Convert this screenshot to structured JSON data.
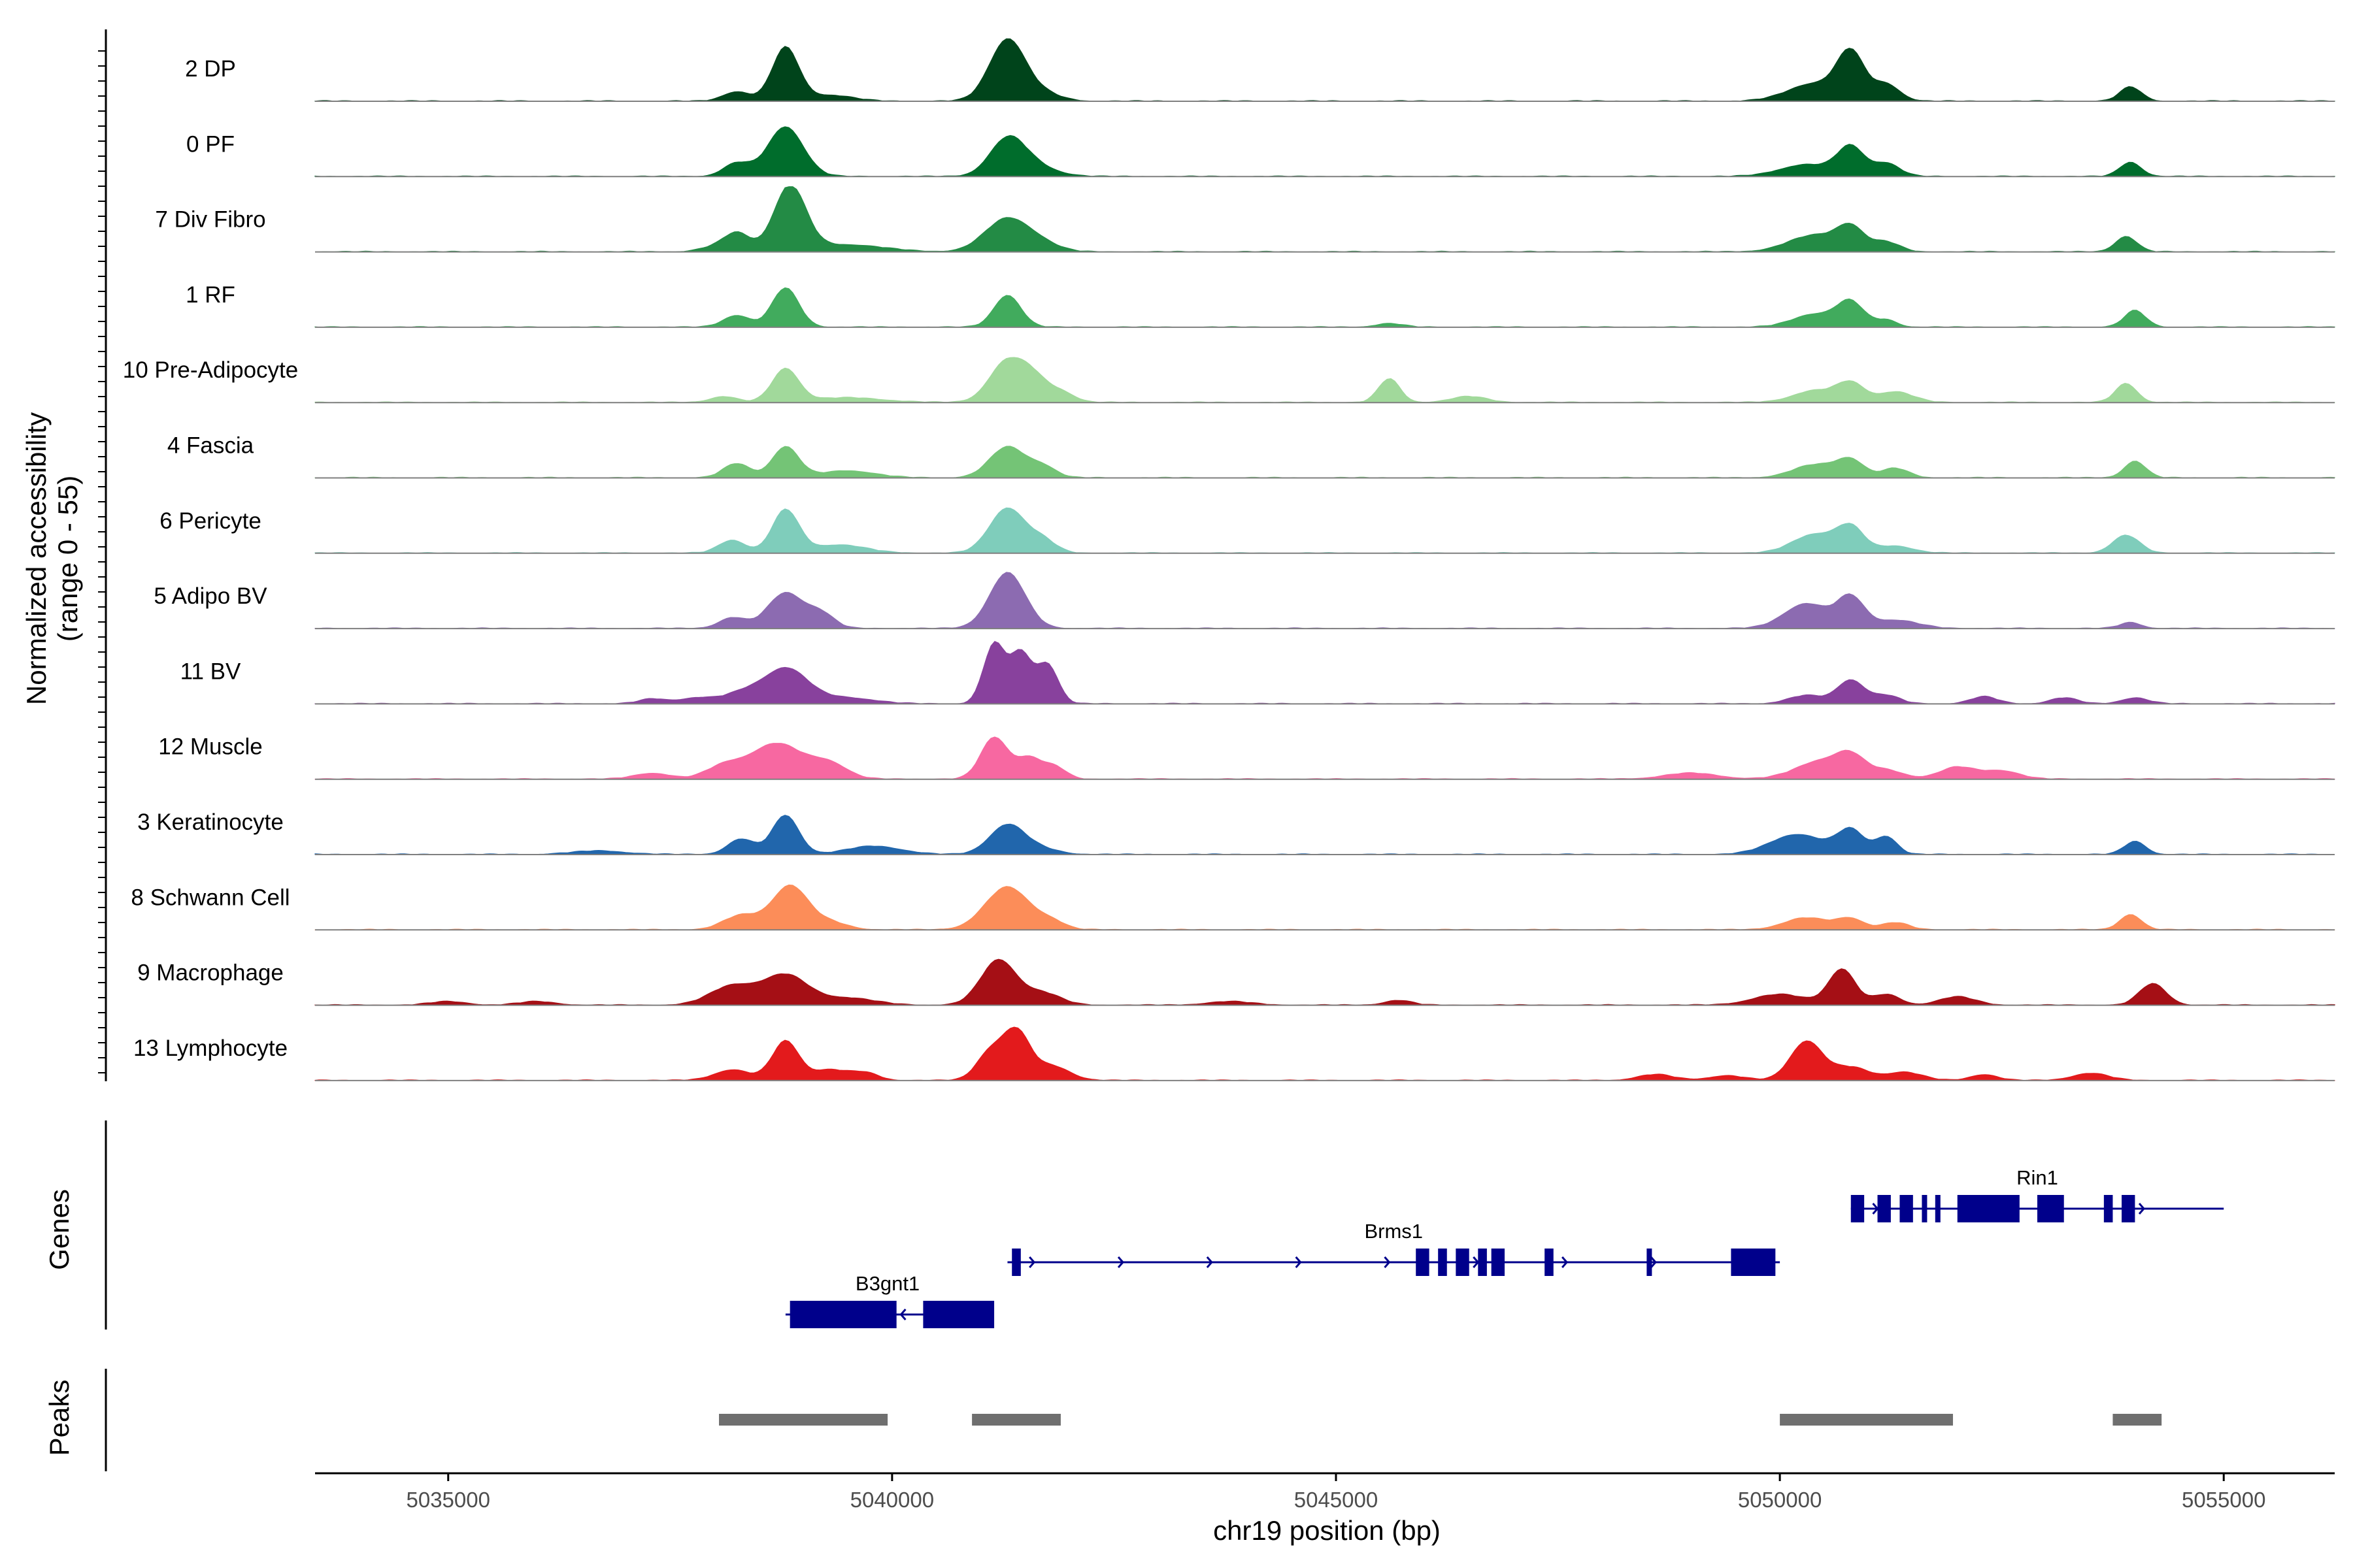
{
  "chart_data": {
    "type": "area",
    "title": "",
    "xlabel": "chr19 position (bp)",
    "ylabel_line1": "Normalized accessibility",
    "ylabel_line2": "(range 0 - 55)",
    "xlim": [
      5033500,
      5056250
    ],
    "ylim": [
      0,
      55
    ],
    "x_ticks": [
      5035000,
      5040000,
      5045000,
      5050000,
      5055000
    ],
    "x_tick_labels": [
      "5035000",
      "5040000",
      "5045000",
      "5050000",
      "5055000"
    ],
    "track_labels": {
      "genes": "Genes",
      "peaks": "Peaks"
    },
    "series": [
      {
        "name": "2 DP",
        "color": "#00441b",
        "peaks": [
          [
            5038250,
            8,
            150
          ],
          [
            5038800,
            45,
            150
          ],
          [
            5039300,
            5,
            250
          ],
          [
            5041300,
            52,
            200
          ],
          [
            5041700,
            6,
            200
          ],
          [
            5050400,
            15,
            300
          ],
          [
            5050800,
            38,
            150
          ],
          [
            5051200,
            14,
            150
          ],
          [
            5053950,
            12,
            120
          ]
        ]
      },
      {
        "name": "0 PF",
        "color": "#006d2c",
        "peaks": [
          [
            5038250,
            11,
            150
          ],
          [
            5038800,
            42,
            200
          ],
          [
            5041300,
            30,
            200
          ],
          [
            5041600,
            8,
            250
          ],
          [
            5050300,
            10,
            300
          ],
          [
            5050800,
            24,
            150
          ],
          [
            5051200,
            11,
            150
          ],
          [
            5053950,
            12,
            120
          ]
        ]
      },
      {
        "name": "7 Div Fibro",
        "color": "#238b45",
        "peaks": [
          [
            5037950,
            3,
            150
          ],
          [
            5038250,
            16,
            150
          ],
          [
            5038850,
            55,
            180
          ],
          [
            5039500,
            6,
            400
          ],
          [
            5041300,
            28,
            250
          ],
          [
            5041700,
            5,
            200
          ],
          [
            5050400,
            14,
            300
          ],
          [
            5050800,
            18,
            150
          ],
          [
            5051200,
            8,
            150
          ],
          [
            5053900,
            13,
            120
          ]
        ]
      },
      {
        "name": "1 RF",
        "color": "#41ab5d",
        "peaks": [
          [
            5038250,
            10,
            150
          ],
          [
            5038800,
            33,
            150
          ],
          [
            5041300,
            27,
            150
          ],
          [
            5045600,
            3,
            150
          ],
          [
            5050400,
            11,
            250
          ],
          [
            5050800,
            20,
            150
          ],
          [
            5051200,
            6,
            120
          ],
          [
            5054000,
            14,
            120
          ]
        ]
      },
      {
        "name": "10 Pre-Adipocyte",
        "color": "#a1d99b",
        "peaks": [
          [
            5038100,
            5,
            150
          ],
          [
            5038800,
            28,
            150
          ],
          [
            5039500,
            4,
            400
          ],
          [
            5041300,
            35,
            200
          ],
          [
            5041600,
            16,
            150
          ],
          [
            5041900,
            9,
            150
          ],
          [
            5045600,
            20,
            120
          ],
          [
            5046500,
            5,
            200
          ],
          [
            5050400,
            10,
            250
          ],
          [
            5050800,
            15,
            150
          ],
          [
            5051300,
            9,
            200
          ],
          [
            5053900,
            16,
            120
          ]
        ]
      },
      {
        "name": "4 Fascia",
        "color": "#74c476",
        "peaks": [
          [
            5038250,
            12,
            150
          ],
          [
            5038800,
            26,
            150
          ],
          [
            5039500,
            6,
            300
          ],
          [
            5041300,
            26,
            200
          ],
          [
            5041700,
            9,
            150
          ],
          [
            5050400,
            11,
            250
          ],
          [
            5050800,
            14,
            150
          ],
          [
            5051300,
            8,
            150
          ],
          [
            5054000,
            14,
            120
          ]
        ]
      },
      {
        "name": "6 Pericyte",
        "color": "#7fcdbb",
        "peaks": [
          [
            5038200,
            11,
            150
          ],
          [
            5038800,
            36,
            150
          ],
          [
            5039400,
            7,
            300
          ],
          [
            5041300,
            38,
            200
          ],
          [
            5041700,
            10,
            150
          ],
          [
            5050400,
            16,
            250
          ],
          [
            5050800,
            20,
            150
          ],
          [
            5051300,
            6,
            200
          ],
          [
            5053900,
            15,
            150
          ]
        ]
      },
      {
        "name": "5 Adipo BV",
        "color": "#8c6bb1",
        "peaks": [
          [
            5038200,
            9,
            150
          ],
          [
            5038800,
            30,
            200
          ],
          [
            5039200,
            12,
            150
          ],
          [
            5041300,
            47,
            200
          ],
          [
            5050300,
            21,
            250
          ],
          [
            5050800,
            25,
            150
          ],
          [
            5051300,
            7,
            250
          ],
          [
            5053950,
            5,
            120
          ]
        ]
      },
      {
        "name": "11 BV",
        "color": "#88419d",
        "peaks": [
          [
            5037300,
            4,
            150
          ],
          [
            5037800,
            5,
            200
          ],
          [
            5038300,
            8,
            200
          ],
          [
            5038800,
            30,
            250
          ],
          [
            5039500,
            5,
            300
          ],
          [
            5041150,
            50,
            120
          ],
          [
            5041450,
            42,
            120
          ],
          [
            5041750,
            33,
            120
          ],
          [
            5050300,
            7,
            200
          ],
          [
            5050800,
            20,
            150
          ],
          [
            5051200,
            7,
            150
          ],
          [
            5052300,
            6,
            150
          ],
          [
            5053200,
            5,
            150
          ],
          [
            5054000,
            5,
            150
          ]
        ]
      },
      {
        "name": "12 Muscle",
        "color": "#f768a1",
        "peaks": [
          [
            5037300,
            5,
            200
          ],
          [
            5038100,
            10,
            200
          ],
          [
            5038700,
            30,
            300
          ],
          [
            5039300,
            12,
            200
          ],
          [
            5041150,
            35,
            150
          ],
          [
            5041550,
            18,
            150
          ],
          [
            5041850,
            9,
            120
          ],
          [
            5049000,
            5,
            300
          ],
          [
            5050500,
            16,
            300
          ],
          [
            5050800,
            13,
            150
          ],
          [
            5051200,
            7,
            200
          ],
          [
            5052000,
            10,
            200
          ],
          [
            5052500,
            7,
            200
          ]
        ]
      },
      {
        "name": "3 Keratinocyte",
        "color": "#2166ac",
        "peaks": [
          [
            5036700,
            3,
            300
          ],
          [
            5038300,
            13,
            150
          ],
          [
            5038800,
            33,
            150
          ],
          [
            5039800,
            7,
            300
          ],
          [
            5041300,
            25,
            200
          ],
          [
            5041700,
            4,
            200
          ],
          [
            5050200,
            17,
            300
          ],
          [
            5050800,
            20,
            150
          ],
          [
            5051200,
            15,
            120
          ],
          [
            5054000,
            11,
            120
          ]
        ]
      },
      {
        "name": "8 Schwann Cell",
        "color": "#fc8d59",
        "peaks": [
          [
            5038300,
            12,
            200
          ],
          [
            5038850,
            37,
            200
          ],
          [
            5039300,
            6,
            200
          ],
          [
            5041300,
            36,
            250
          ],
          [
            5041800,
            6,
            150
          ],
          [
            5050300,
            10,
            250
          ],
          [
            5050800,
            9,
            150
          ],
          [
            5051300,
            6,
            150
          ],
          [
            5053950,
            13,
            120
          ]
        ]
      },
      {
        "name": "9 Macrophage",
        "color": "#a50f15",
        "peaks": [
          [
            5035000,
            3,
            200
          ],
          [
            5036000,
            3,
            200
          ],
          [
            5038200,
            16,
            250
          ],
          [
            5038800,
            25,
            250
          ],
          [
            5039500,
            6,
            300
          ],
          [
            5041200,
            38,
            200
          ],
          [
            5041700,
            10,
            200
          ],
          [
            5043800,
            3,
            250
          ],
          [
            5045700,
            4,
            150
          ],
          [
            5050000,
            9,
            300
          ],
          [
            5050700,
            30,
            150
          ],
          [
            5051200,
            9,
            150
          ],
          [
            5052000,
            7,
            200
          ],
          [
            5054200,
            18,
            150
          ]
        ]
      },
      {
        "name": "13 Lymphocyte",
        "color": "#e31a1c",
        "peaks": [
          [
            5038200,
            9,
            200
          ],
          [
            5038800,
            33,
            150
          ],
          [
            5039300,
            9,
            200
          ],
          [
            5039700,
            6,
            150
          ],
          [
            5041100,
            23,
            150
          ],
          [
            5041400,
            40,
            150
          ],
          [
            5041800,
            12,
            200
          ],
          [
            5048600,
            5,
            200
          ],
          [
            5049400,
            4,
            200
          ],
          [
            5050300,
            33,
            180
          ],
          [
            5050800,
            11,
            200
          ],
          [
            5051400,
            7,
            200
          ],
          [
            5052300,
            5,
            150
          ],
          [
            5053500,
            6,
            200
          ]
        ]
      }
    ],
    "genes": [
      {
        "name": "B3gnt1",
        "start": 5038800,
        "end": 5041100,
        "strand": "-",
        "row": 0,
        "exons": [
          [
            5038850,
            5040050
          ],
          [
            5040350,
            5041150
          ]
        ]
      },
      {
        "name": "Brms1",
        "start": 5041300,
        "end": 5050000,
        "strand": "+",
        "row": 1,
        "exons": [
          [
            5041350,
            5041450
          ],
          [
            5045900,
            5046050
          ],
          [
            5046150,
            5046250
          ],
          [
            5046350,
            5046500
          ],
          [
            5046600,
            5046700
          ],
          [
            5046750,
            5046900
          ],
          [
            5047350,
            5047450
          ],
          [
            5048500,
            5048550
          ],
          [
            5049450,
            5049950
          ]
        ]
      },
      {
        "name": "Rin1",
        "start": 5050800,
        "end": 5055000,
        "strand": "+",
        "row": 2,
        "exons": [
          [
            5050800,
            5050950
          ],
          [
            5051100,
            5051250
          ],
          [
            5051350,
            5051500
          ],
          [
            5051600,
            5051650
          ],
          [
            5051750,
            5051800
          ],
          [
            5052000,
            5052700
          ],
          [
            5052900,
            5053200
          ],
          [
            5053650,
            5053750
          ],
          [
            5053850,
            5054000
          ]
        ]
      }
    ],
    "peaks_track": [
      [
        5038050,
        5039950
      ],
      [
        5040900,
        5041900
      ],
      [
        5050000,
        5051950
      ],
      [
        5053750,
        5054300
      ]
    ]
  }
}
